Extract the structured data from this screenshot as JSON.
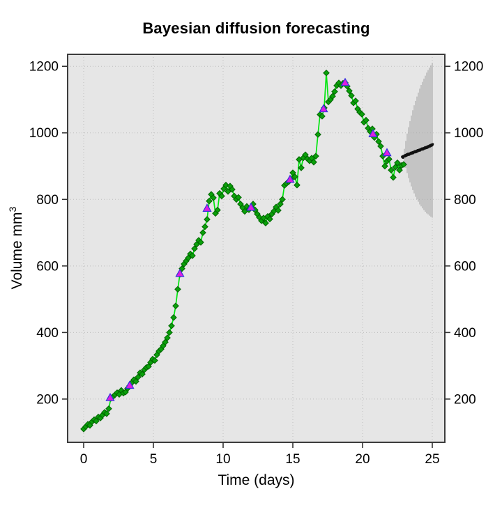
{
  "chart_data": {
    "type": "line",
    "title": "Bayesian diffusion forecasting",
    "xlabel": "Time (days)",
    "ylabel": {
      "text": "Volume mm",
      "superscript": "3"
    },
    "x_ticks": [
      0,
      5,
      10,
      15,
      20,
      25
    ],
    "y_ticks": [
      200,
      400,
      600,
      800,
      1000,
      1200
    ],
    "xlim": [
      -1.15,
      25.9
    ],
    "ylim": [
      70,
      1236
    ],
    "grid": true,
    "legend": "none",
    "colors": {
      "panel_bg": "#e6e6e6",
      "grid": "#bdbdbd",
      "border": "#3c3c3c",
      "observed_line": "#00e60e",
      "observed_marker": "#0aa00a",
      "observed_marker_edge": "#006400",
      "checkpoint_fill": "#e01ee0",
      "checkpoint_edge": "#3232dd",
      "forecast_median": "#111111",
      "forecast_fan": "#a3a3a3"
    },
    "series": [
      {
        "name": "observed-volume",
        "style": "line-with-diamonds",
        "points": [
          [
            0.0,
            110
          ],
          [
            0.15,
            117
          ],
          [
            0.3,
            124
          ],
          [
            0.45,
            121
          ],
          [
            0.6,
            132
          ],
          [
            0.75,
            138
          ],
          [
            0.9,
            134
          ],
          [
            1.05,
            146
          ],
          [
            1.2,
            143
          ],
          [
            1.35,
            152
          ],
          [
            1.5,
            160
          ],
          [
            1.65,
            156
          ],
          [
            1.8,
            171
          ],
          [
            1.95,
            202
          ],
          [
            2.1,
            207
          ],
          [
            2.25,
            213
          ],
          [
            2.4,
            219
          ],
          [
            2.55,
            214
          ],
          [
            2.7,
            226
          ],
          [
            2.85,
            218
          ],
          [
            3.0,
            221
          ],
          [
            3.15,
            232
          ],
          [
            3.3,
            240
          ],
          [
            3.45,
            249
          ],
          [
            3.6,
            258
          ],
          [
            3.75,
            253
          ],
          [
            3.9,
            266
          ],
          [
            4.05,
            279
          ],
          [
            4.2,
            275
          ],
          [
            4.35,
            288
          ],
          [
            4.5,
            295
          ],
          [
            4.65,
            298
          ],
          [
            4.8,
            310
          ],
          [
            4.95,
            320
          ],
          [
            5.1,
            316
          ],
          [
            5.25,
            333
          ],
          [
            5.4,
            344
          ],
          [
            5.55,
            350
          ],
          [
            5.7,
            360
          ],
          [
            5.85,
            371
          ],
          [
            6.0,
            384
          ],
          [
            6.15,
            400
          ],
          [
            6.3,
            420
          ],
          [
            6.45,
            445
          ],
          [
            6.6,
            480
          ],
          [
            6.75,
            530
          ],
          [
            6.9,
            575
          ],
          [
            7.05,
            592
          ],
          [
            7.2,
            606
          ],
          [
            7.35,
            615
          ],
          [
            7.5,
            624
          ],
          [
            7.65,
            636
          ],
          [
            7.8,
            631
          ],
          [
            7.95,
            652
          ],
          [
            8.1,
            665
          ],
          [
            8.25,
            677
          ],
          [
            8.4,
            671
          ],
          [
            8.55,
            700
          ],
          [
            8.7,
            718
          ],
          [
            8.85,
            740
          ],
          [
            9.0,
            795
          ],
          [
            9.15,
            815
          ],
          [
            9.3,
            805
          ],
          [
            9.45,
            758
          ],
          [
            9.6,
            768
          ],
          [
            9.75,
            818
          ],
          [
            9.9,
            810
          ],
          [
            10.05,
            832
          ],
          [
            10.2,
            843
          ],
          [
            10.35,
            824
          ],
          [
            10.5,
            840
          ],
          [
            10.65,
            830
          ],
          [
            10.8,
            810
          ],
          [
            10.95,
            800
          ],
          [
            11.1,
            806
          ],
          [
            11.25,
            786
          ],
          [
            11.4,
            775
          ],
          [
            11.55,
            764
          ],
          [
            11.7,
            779
          ],
          [
            11.85,
            769
          ],
          [
            12.0,
            777
          ],
          [
            12.15,
            786
          ],
          [
            12.3,
            768
          ],
          [
            12.45,
            756
          ],
          [
            12.6,
            746
          ],
          [
            12.75,
            736
          ],
          [
            12.9,
            744
          ],
          [
            13.05,
            729
          ],
          [
            13.2,
            749
          ],
          [
            13.35,
            741
          ],
          [
            13.5,
            756
          ],
          [
            13.65,
            765
          ],
          [
            13.8,
            777
          ],
          [
            13.95,
            767
          ],
          [
            14.1,
            786
          ],
          [
            14.25,
            800
          ],
          [
            14.4,
            842
          ],
          [
            14.55,
            848
          ],
          [
            14.7,
            853
          ],
          [
            14.85,
            860
          ],
          [
            15.0,
            880
          ],
          [
            15.15,
            868
          ],
          [
            15.3,
            843
          ],
          [
            15.45,
            920
          ],
          [
            15.6,
            895
          ],
          [
            15.75,
            925
          ],
          [
            15.9,
            934
          ],
          [
            16.05,
            922
          ],
          [
            16.2,
            916
          ],
          [
            16.35,
            924
          ],
          [
            16.5,
            912
          ],
          [
            16.65,
            930
          ],
          [
            16.8,
            995
          ],
          [
            16.95,
            1055
          ],
          [
            17.1,
            1050
          ],
          [
            17.25,
            1075
          ],
          [
            17.4,
            1180
          ],
          [
            17.55,
            1093
          ],
          [
            17.7,
            1100
          ],
          [
            17.85,
            1110
          ],
          [
            18.0,
            1124
          ],
          [
            18.15,
            1142
          ],
          [
            18.3,
            1150
          ],
          [
            18.45,
            1142
          ],
          [
            18.6,
            1149
          ],
          [
            18.75,
            1151
          ],
          [
            18.9,
            1140
          ],
          [
            19.05,
            1126
          ],
          [
            19.2,
            1112
          ],
          [
            19.35,
            1090
          ],
          [
            19.5,
            1096
          ],
          [
            19.65,
            1072
          ],
          [
            19.8,
            1062
          ],
          [
            19.95,
            1056
          ],
          [
            20.1,
            1032
          ],
          [
            20.25,
            1038
          ],
          [
            20.4,
            1014
          ],
          [
            20.55,
            1004
          ],
          [
            20.7,
            1012
          ],
          [
            20.85,
            986
          ],
          [
            21.0,
            996
          ],
          [
            21.15,
            974
          ],
          [
            21.3,
            960
          ],
          [
            21.45,
            930
          ],
          [
            21.6,
            900
          ],
          [
            21.75,
            915
          ],
          [
            21.9,
            921
          ],
          [
            22.05,
            888
          ],
          [
            22.2,
            866
          ],
          [
            22.35,
            897
          ],
          [
            22.5,
            910
          ],
          [
            22.65,
            888
          ],
          [
            22.8,
            902
          ],
          [
            22.95,
            905
          ]
        ]
      },
      {
        "name": "assimilation-checkpoints",
        "style": "triangles",
        "points": [
          [
            1.9,
            204
          ],
          [
            3.3,
            241
          ],
          [
            6.9,
            577
          ],
          [
            8.85,
            773
          ],
          [
            12.0,
            776
          ],
          [
            14.8,
            860
          ],
          [
            17.2,
            1072
          ],
          [
            18.75,
            1151
          ],
          [
            20.75,
            997
          ],
          [
            21.75,
            940
          ]
        ]
      },
      {
        "name": "forecast-median",
        "style": "dots",
        "points": [
          [
            22.85,
            928
          ],
          [
            22.9,
            926
          ],
          [
            22.95,
            929
          ],
          [
            23.0,
            931
          ],
          [
            23.05,
            930
          ],
          [
            23.1,
            933
          ],
          [
            23.15,
            932
          ],
          [
            23.2,
            935
          ],
          [
            23.25,
            934
          ],
          [
            23.3,
            936
          ],
          [
            23.35,
            935
          ],
          [
            23.4,
            937
          ],
          [
            23.45,
            939
          ],
          [
            23.5,
            938
          ],
          [
            23.55,
            940
          ],
          [
            23.6,
            939
          ],
          [
            23.65,
            941
          ],
          [
            23.7,
            943
          ],
          [
            23.75,
            942
          ],
          [
            23.8,
            944
          ],
          [
            23.85,
            943
          ],
          [
            23.9,
            946
          ],
          [
            23.95,
            945
          ],
          [
            24.0,
            947
          ],
          [
            24.05,
            948
          ],
          [
            24.1,
            947
          ],
          [
            24.15,
            949
          ],
          [
            24.2,
            951
          ],
          [
            24.25,
            950
          ],
          [
            24.3,
            952
          ],
          [
            24.35,
            951
          ],
          [
            24.4,
            953
          ],
          [
            24.45,
            955
          ],
          [
            24.5,
            954
          ],
          [
            24.55,
            956
          ],
          [
            24.6,
            955
          ],
          [
            24.65,
            958
          ],
          [
            24.7,
            957
          ],
          [
            24.75,
            959
          ],
          [
            24.8,
            961
          ],
          [
            24.85,
            960
          ],
          [
            24.9,
            963
          ],
          [
            24.95,
            962
          ],
          [
            25.0,
            964
          ]
        ]
      }
    ],
    "forecast_fan": {
      "description": "posterior predictive credible interval whiskers",
      "lines": [
        {
          "t": 23.0,
          "lo": 914,
          "hi": 952
        },
        {
          "t": 23.1,
          "lo": 895,
          "hi": 976
        },
        {
          "t": 23.2,
          "lo": 879,
          "hi": 998
        },
        {
          "t": 23.3,
          "lo": 864,
          "hi": 1017
        },
        {
          "t": 23.4,
          "lo": 851,
          "hi": 1035
        },
        {
          "t": 23.5,
          "lo": 839,
          "hi": 1052
        },
        {
          "t": 23.6,
          "lo": 828,
          "hi": 1068
        },
        {
          "t": 23.7,
          "lo": 818,
          "hi": 1083
        },
        {
          "t": 23.8,
          "lo": 808,
          "hi": 1096
        },
        {
          "t": 23.9,
          "lo": 800,
          "hi": 1109
        },
        {
          "t": 24.0,
          "lo": 793,
          "hi": 1121
        },
        {
          "t": 24.1,
          "lo": 785,
          "hi": 1133
        },
        {
          "t": 24.2,
          "lo": 779,
          "hi": 1144
        },
        {
          "t": 24.3,
          "lo": 773,
          "hi": 1153
        },
        {
          "t": 24.4,
          "lo": 768,
          "hi": 1163
        },
        {
          "t": 24.5,
          "lo": 763,
          "hi": 1172
        },
        {
          "t": 24.6,
          "lo": 758,
          "hi": 1181
        },
        {
          "t": 24.7,
          "lo": 755,
          "hi": 1189
        },
        {
          "t": 24.8,
          "lo": 751,
          "hi": 1196
        },
        {
          "t": 24.9,
          "lo": 748,
          "hi": 1203
        },
        {
          "t": 25.0,
          "lo": 745,
          "hi": 1210
        }
      ]
    }
  }
}
